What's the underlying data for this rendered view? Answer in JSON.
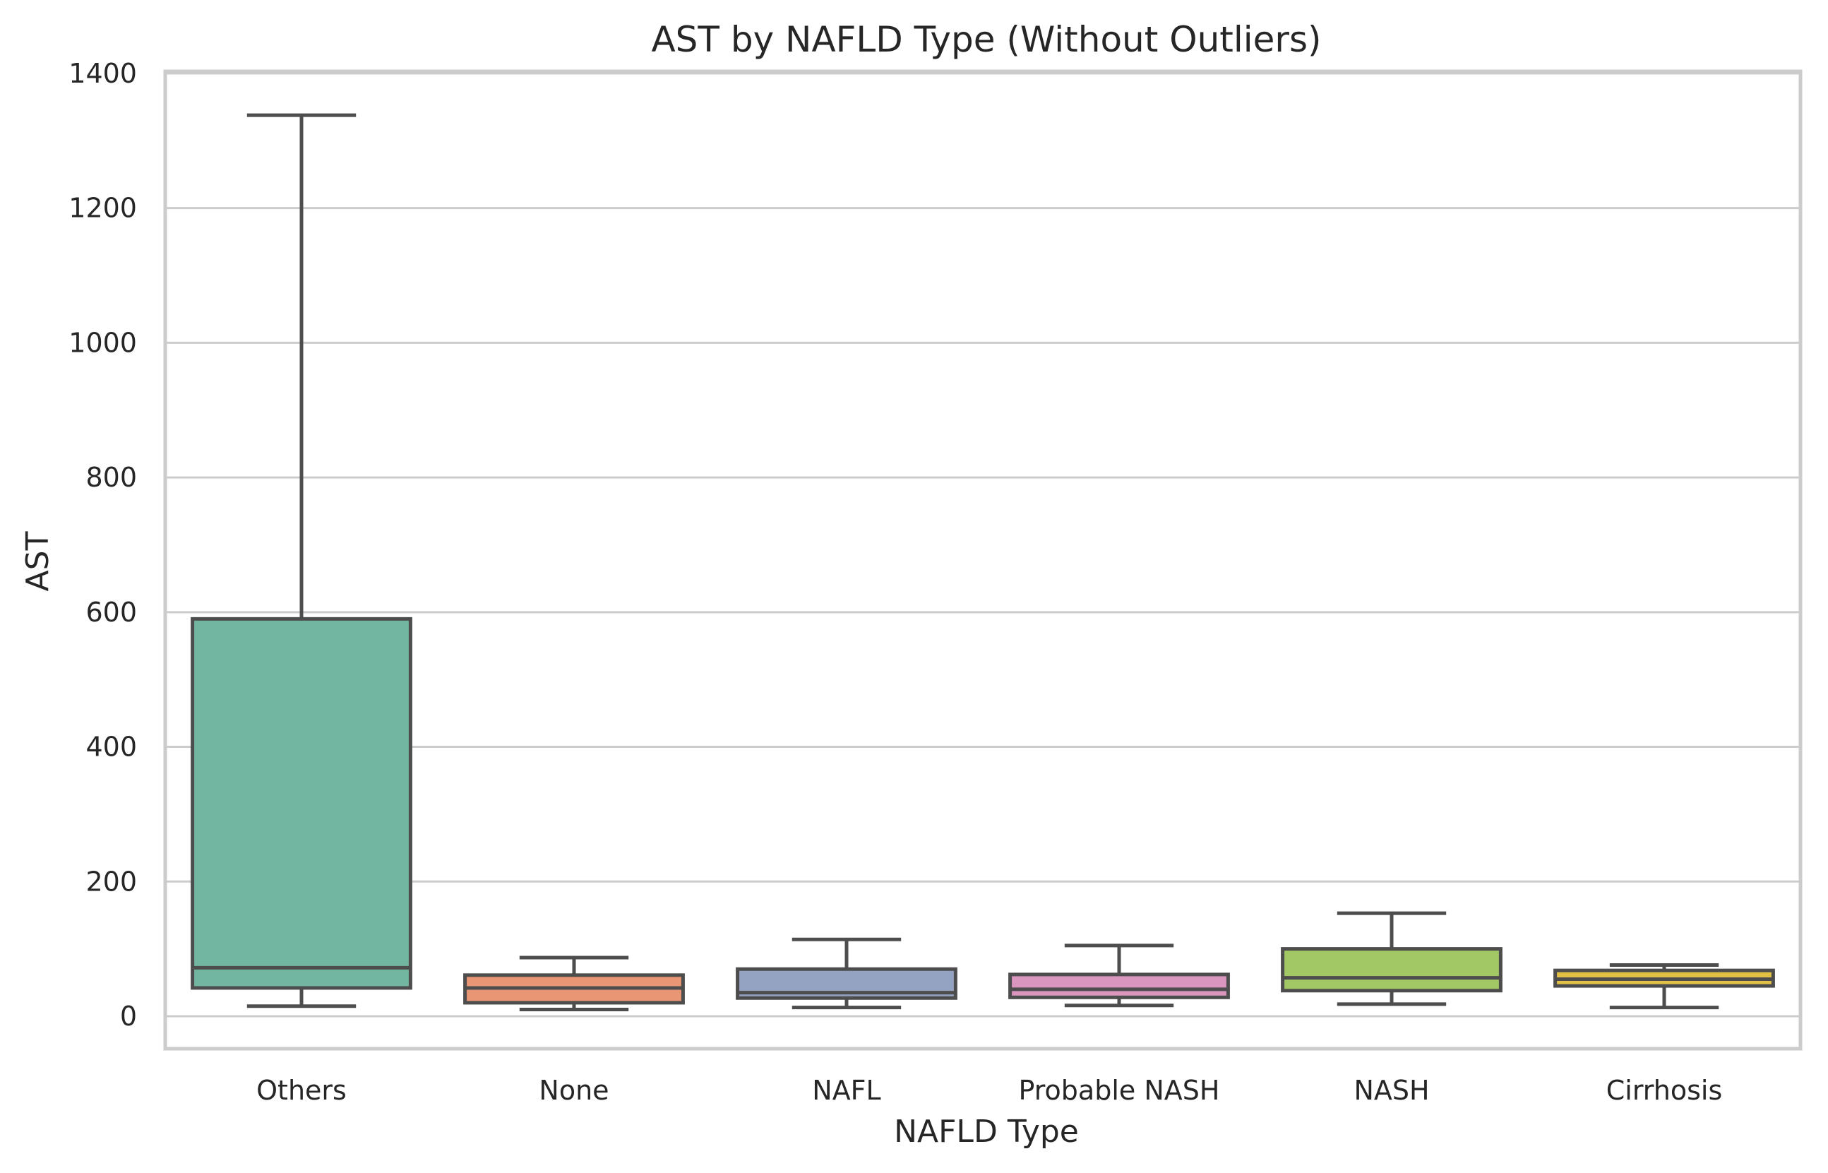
{
  "chart_data": {
    "type": "box",
    "title": "AST by NAFLD Type (Without Outliers)",
    "xlabel": "NAFLD Type",
    "ylabel": "AST",
    "ylim": [
      -55,
      1405
    ],
    "yticks": [
      0,
      200,
      400,
      600,
      800,
      1000,
      1200,
      1400
    ],
    "ytick_labels": [
      "0",
      "200",
      "400",
      "600",
      "800",
      "1000",
      "1200",
      "1400"
    ],
    "grid": true,
    "legend": "none",
    "categories": [
      "Others",
      "None",
      "NAFL",
      "Probable NASH",
      "NASH",
      "Cirrhosis"
    ],
    "boxes": [
      {
        "category": "Others",
        "whisker_low": 15,
        "q1": 42,
        "median": 72,
        "q3": 590,
        "whisker_high": 1338,
        "color": "#72b6a1"
      },
      {
        "category": "None",
        "whisker_low": 10,
        "q1": 20,
        "median": 42,
        "q3": 61,
        "whisker_high": 87,
        "color": "#e99675"
      },
      {
        "category": "NAFL",
        "whisker_low": 13,
        "q1": 27,
        "median": 35,
        "q3": 70,
        "whisker_high": 114,
        "color": "#95a3c3"
      },
      {
        "category": "Probable NASH",
        "whisker_low": 16,
        "q1": 28,
        "median": 40,
        "q3": 62,
        "whisker_high": 105,
        "color": "#db96c0"
      },
      {
        "category": "NASH",
        "whisker_low": 18,
        "q1": 38,
        "median": 57,
        "q3": 100,
        "whisker_high": 153,
        "color": "#a2c865"
      },
      {
        "category": "Cirrhosis",
        "whisker_low": 13,
        "q1": 45,
        "median": 55,
        "q3": 68,
        "whisker_high": 76,
        "color": "#e2c046"
      }
    ]
  }
}
